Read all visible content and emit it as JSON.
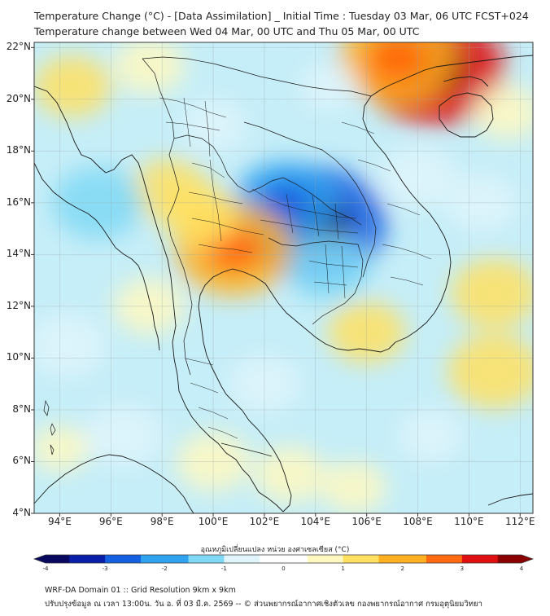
{
  "header": {
    "title_line1": "Temperature Change (°C) - [Data Assimilation] _ Initial Time : Tuesday 03 Mar, 06 UTC FCST+024",
    "title_line2": "Temperature change between Wed 04 Mar, 00 UTC and Thu 05 Mar, 00 UTC"
  },
  "map": {
    "lat_labels": [
      "22°N",
      "20°N",
      "18°N",
      "16°N",
      "14°N",
      "12°N",
      "10°N",
      "8°N",
      "6°N",
      "4°N"
    ],
    "lon_labels": [
      "94°E",
      "96°E",
      "98°E",
      "100°E",
      "102°E",
      "104°E",
      "106°E",
      "108°E",
      "110°E",
      "112°E"
    ],
    "lon_range": [
      93,
      112.5
    ],
    "lat_range": [
      4,
      22.2
    ]
  },
  "colorbar": {
    "label": "อุณหภูมิเปลี่ยนแปลง หน่วย องศาเซลเซียส (°C)",
    "ticks": [
      "-4",
      "-3",
      "-2",
      "-1",
      "0",
      "1",
      "2",
      "3",
      "4"
    ],
    "range": [
      -4,
      4
    ],
    "colors": [
      "#08085e",
      "#0a1fa8",
      "#1560e0",
      "#2fa3f0",
      "#7fd8f5",
      "#dff5fb",
      "#ffffff",
      "#fff8c0",
      "#ffe060",
      "#ffb020",
      "#ff6a10",
      "#e01010",
      "#8a0000"
    ]
  },
  "footer": {
    "line1": "WRF-DA Domain 01 :: Grid Resolution 9km x 9km",
    "line2": "ปรับปรุงข้อมูล ณ เวลา 13:00น. วัน อ. ที่ 03 มี.ค. 2569 -- © ส่วนพยากรณ์อากาศเชิงตัวเลข กองพยากรณ์อากาศ กรมอุตุนิยมวิทยา"
  },
  "field": {
    "anomalies": [
      {
        "lon": 104,
        "lat": 15.2,
        "value": -3.0
      },
      {
        "lon": 102.8,
        "lat": 16.0,
        "value": -1.8
      },
      {
        "lon": 104.5,
        "lat": 13.5,
        "value": -1.2
      },
      {
        "lon": 108.6,
        "lat": 21.2,
        "value": 3.0
      },
      {
        "lon": 107.2,
        "lat": 21.6,
        "value": 2.2
      },
      {
        "lon": 100.8,
        "lat": 14.2,
        "value": 2.2
      },
      {
        "lon": 99.5,
        "lat": 15.5,
        "value": 1.0
      },
      {
        "lon": 98.3,
        "lat": 16.5,
        "value": 1.0
      },
      {
        "lon": 97.5,
        "lat": 12.0,
        "value": 0.8
      },
      {
        "lon": 94.5,
        "lat": 20.5,
        "value": 1.0
      },
      {
        "lon": 97.5,
        "lat": 21.3,
        "value": 0.8
      },
      {
        "lon": 111.0,
        "lat": 9.5,
        "value": 1.5
      },
      {
        "lon": 111.0,
        "lat": 12.5,
        "value": 1.3
      },
      {
        "lon": 106.0,
        "lat": 11.0,
        "value": 1.0
      },
      {
        "lon": 102.0,
        "lat": 9.0,
        "value": -0.8
      },
      {
        "lon": 100.0,
        "lat": 6.0,
        "value": 0.9
      },
      {
        "lon": 103.0,
        "lat": 5.5,
        "value": 0.8
      },
      {
        "lon": 105.5,
        "lat": 5.0,
        "value": 0.6
      },
      {
        "lon": 95.5,
        "lat": 16.0,
        "value": -1.4
      },
      {
        "lon": 94.3,
        "lat": 10.5,
        "value": -1.0
      },
      {
        "lon": 96.5,
        "lat": 7.0,
        "value": -1.0
      },
      {
        "lon": 108.0,
        "lat": 17.0,
        "value": -1.0
      },
      {
        "lon": 110.5,
        "lat": 16.0,
        "value": -0.8
      },
      {
        "lon": 111.5,
        "lat": 19.5,
        "value": 0.7
      },
      {
        "lon": 100.0,
        "lat": 19.0,
        "value": -0.6
      },
      {
        "lon": 104.5,
        "lat": 20.5,
        "value": -0.4
      },
      {
        "lon": 108.5,
        "lat": 7.0,
        "value": -0.6
      },
      {
        "lon": 94.0,
        "lat": 6.5,
        "value": 0.4
      }
    ]
  }
}
